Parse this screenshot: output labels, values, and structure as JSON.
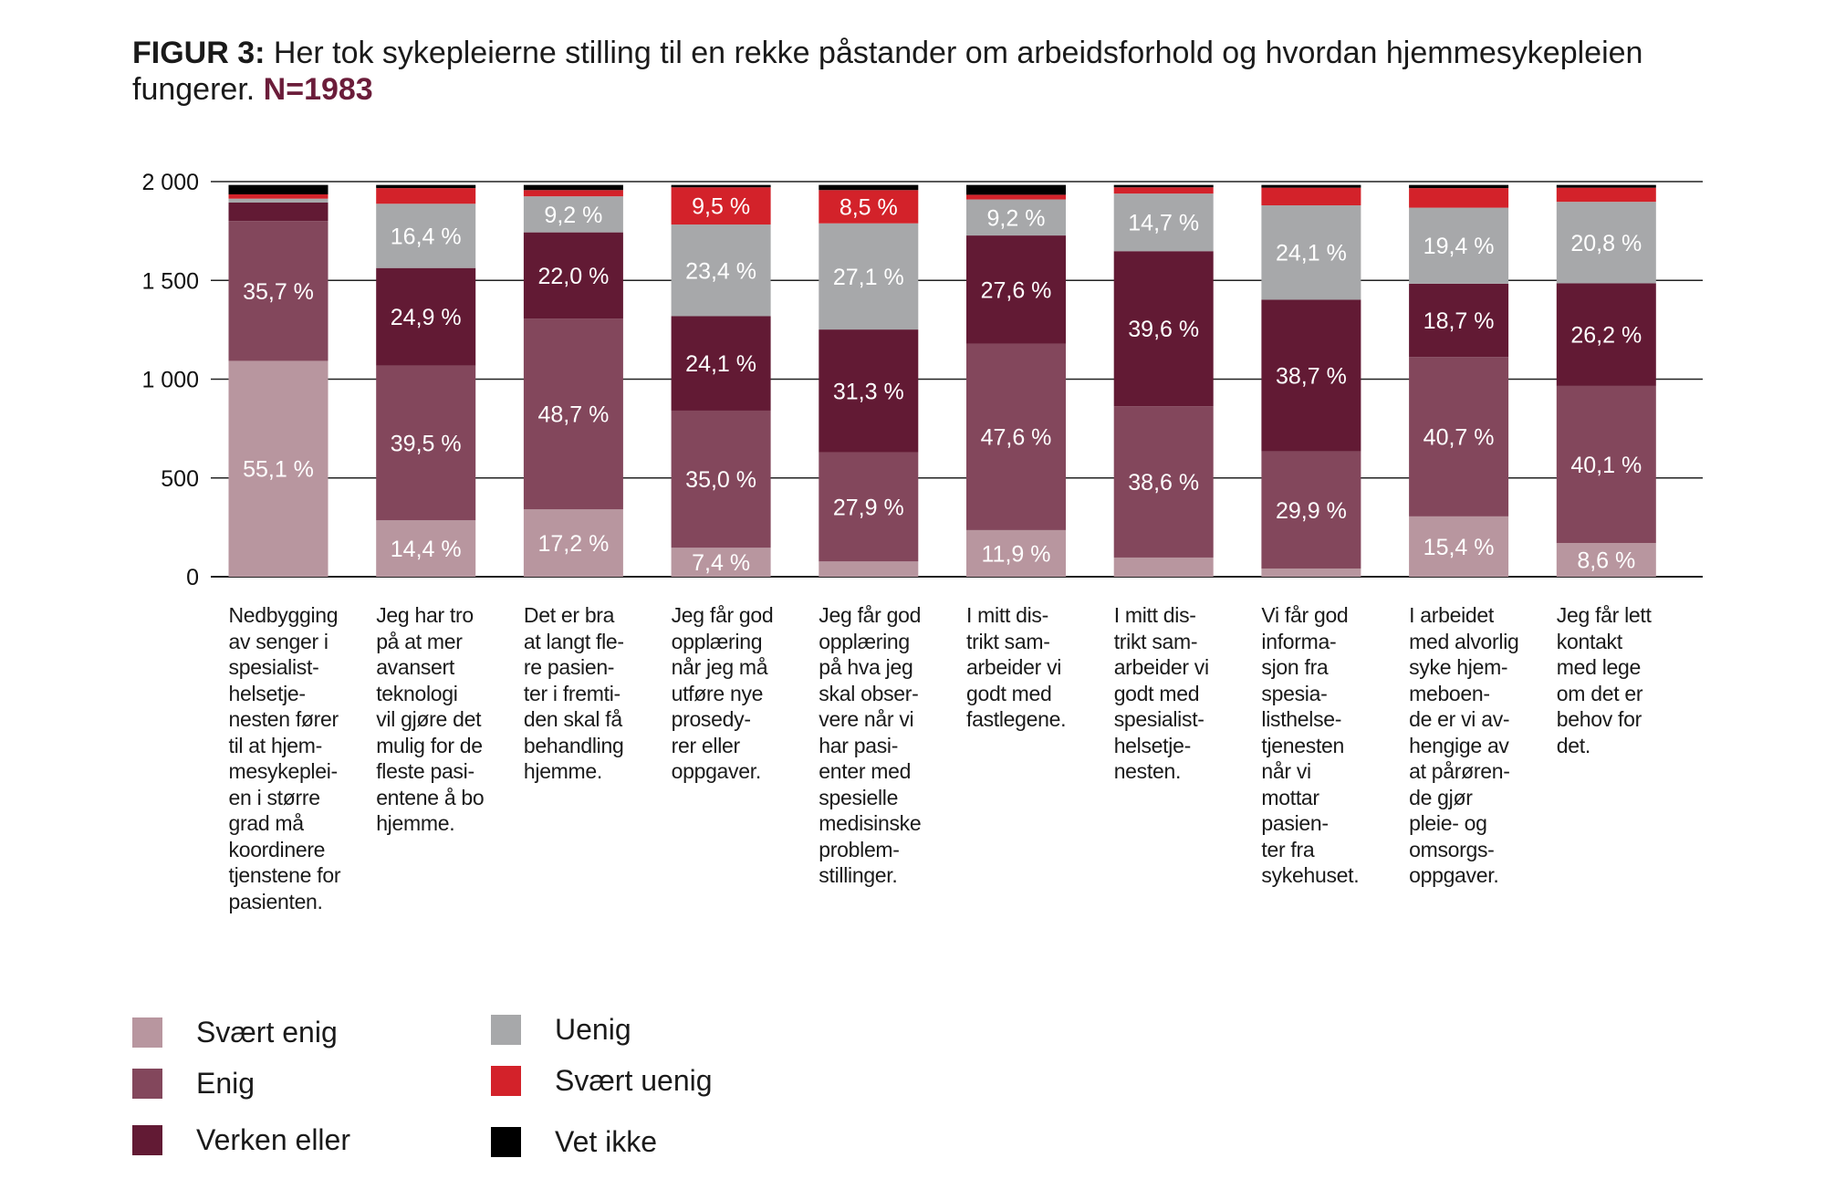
{
  "title": {
    "lead": "FIGUR 3:",
    "text": " Her tok sykepleierne stilling til en rekke påstander om arbeidsforhold og hvordan hjemmesykepleien fungerer. ",
    "n": "N=1983"
  },
  "chart_data": {
    "type": "bar",
    "stacked": true,
    "total_n": 1983,
    "ylim": [
      0,
      2000
    ],
    "yticks": [
      0,
      500,
      1000,
      1500,
      2000
    ],
    "ytick_labels": [
      "0",
      "500",
      "1 000",
      "1 500",
      "2 000"
    ],
    "grid": true,
    "legend_placement": "bottom-left",
    "categories": [
      "Nedbygging\nav senger i\nspesialist-\nhelsetje-\nnesten fører\ntil at hjem-\nmesykeplei-\nen i større\ngrad må\nkoordinere\ntjenstene for\npasienten.",
      "Jeg har tro\npå at mer\navansert\nteknologi\nvil gjøre det\nmulig for de\nfleste pasi-\nentene å bo\nhjemme.",
      "Det er bra\nat langt fle-\nre pasien-\nter i fremti-\nden skal få\nbehandling\nhjemme.",
      "Jeg får god\nopplæring\nnår jeg må\nutføre nye\nprosedy-\nrer eller\noppgaver.",
      "Jeg får god\nopplæring\npå hva jeg\nskal obser-\nvere når vi\nhar pasi-\nenter med\nspesielle\nmedisinske\nproblem-\nstillinger.",
      "I mitt dis-\ntrikt sam-\narbeider vi\ngodt med\nfastlegene.",
      "I mitt dis-\ntrikt sam-\narbeider vi\ngodt med\nspesialist-\nhelsetje-\nnesten.",
      "Vi får god\ninforma-\nsjon fra\nspesia-\nlisthelse-\ntjenesten\nnår vi\nmottar\npasien-\nter fra\nsykehuset.",
      "I arbeidet\nmed alvorlig\nsyke hjem-\nmeboen-\nde er vi av-\nhengige av\nat pårøren-\nde gjør\npleie- og\nomsorgs-\noppgaver.",
      "Jeg får lett\nkontakt\nmed lege\nom det er\nbehov for\ndet."
    ],
    "series": [
      {
        "name": "Svært enig",
        "color": "#b8969f",
        "values": [
          55.1,
          14.4,
          17.2,
          7.4,
          3.9,
          11.9,
          4.9,
          2.1,
          15.4,
          8.6
        ],
        "labels": [
          "55,1 %",
          "14,4 %",
          "17,2 %",
          "7,4 %",
          null,
          "11,9 %",
          null,
          null,
          "15,4 %",
          "8,6 %"
        ]
      },
      {
        "name": "Enig",
        "color": "#83475c",
        "values": [
          35.7,
          39.5,
          48.7,
          35.0,
          27.9,
          47.6,
          38.6,
          29.9,
          40.7,
          40.1
        ],
        "labels": [
          "35,7 %",
          "39,5 %",
          "48,7 %",
          "35,0 %",
          "27,9 %",
          "47,6 %",
          "38,6 %",
          "29,9 %",
          "40,7 %",
          "40,1 %"
        ]
      },
      {
        "name": "Verken eller",
        "color": "#621a34",
        "values": [
          4.7,
          24.9,
          22.0,
          24.1,
          31.3,
          27.6,
          39.6,
          38.7,
          18.7,
          26.2
        ],
        "labels": [
          null,
          "24,9 %",
          "22,0 %",
          "24,1 %",
          "31,3 %",
          "27,6 %",
          "39,6 %",
          "38,7 %",
          "18,7 %",
          "26,2 %"
        ]
      },
      {
        "name": "Uenig",
        "color": "#a7a8aa",
        "values": [
          1.0,
          16.4,
          9.2,
          23.4,
          27.1,
          9.2,
          14.7,
          24.1,
          19.4,
          20.8
        ],
        "labels": [
          null,
          "16,4 %",
          "9,2 %",
          "23,4 %",
          "27,1 %",
          "9,2 %",
          "14,7 %",
          "24,1 %",
          "19,4 %",
          "20,8 %"
        ]
      },
      {
        "name": "Svært uenig",
        "color": "#d3222a",
        "values": [
          1.1,
          4.0,
          1.6,
          9.5,
          8.5,
          1.2,
          1.6,
          4.5,
          5.0,
          3.6
        ],
        "labels": [
          null,
          null,
          null,
          "9,5 %",
          "8,5 %",
          null,
          null,
          null,
          null,
          null
        ]
      },
      {
        "name": "Vet ikke",
        "color": "#000000",
        "values": [
          2.4,
          0.8,
          1.3,
          0.6,
          1.3,
          2.5,
          0.6,
          0.7,
          0.8,
          0.7
        ],
        "labels": [
          null,
          null,
          null,
          null,
          null,
          null,
          null,
          null,
          null,
          null
        ]
      }
    ]
  }
}
